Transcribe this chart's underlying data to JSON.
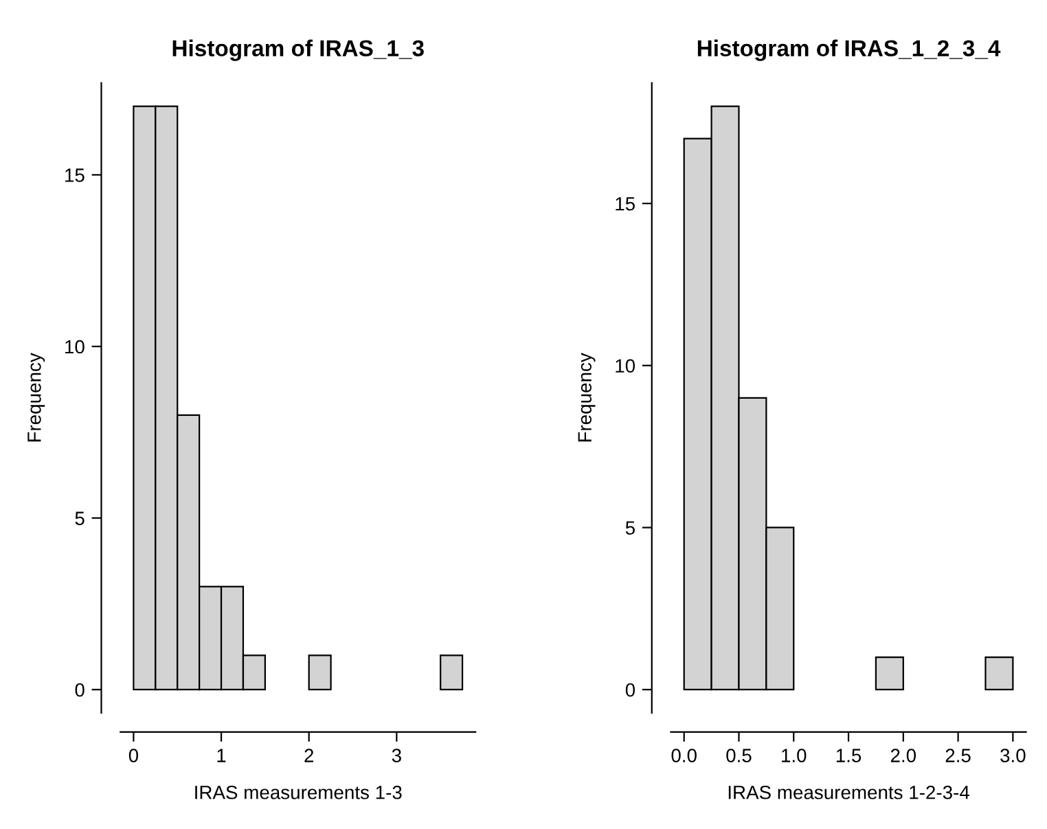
{
  "chart_data": [
    {
      "type": "histogram",
      "title": "Histogram of IRAS_1_3",
      "xlabel": "IRAS measurements 1-3",
      "ylabel": "Frequency",
      "color": "#d3d3d3",
      "bins": [
        0,
        0.25,
        0.5,
        0.75,
        1,
        1.25,
        1.5,
        1.75,
        2,
        2.25,
        2.5,
        2.75,
        3,
        3.25,
        3.5,
        3.75
      ],
      "values": [
        17,
        17,
        8,
        3,
        3,
        1,
        0,
        0,
        1,
        0,
        0,
        0,
        0,
        0,
        1
      ],
      "xlim": [
        -0.15,
        3.9
      ],
      "xticks": [
        0,
        1,
        2,
        3
      ],
      "ylim": [
        -0.68,
        17.68
      ],
      "yticks": [
        0,
        5,
        10,
        15
      ],
      "grid": false,
      "legend": false
    },
    {
      "type": "histogram",
      "title": "Histogram of IRAS_1_2_3_4",
      "xlabel": "IRAS measurements 1-2-3-4",
      "ylabel": "Frequency",
      "color": "#d3d3d3",
      "bins": [
        0,
        0.25,
        0.5,
        0.75,
        1,
        1.25,
        1.5,
        1.75,
        2,
        2.25,
        2.5,
        2.75,
        3
      ],
      "values": [
        17,
        18,
        9,
        5,
        0,
        0,
        0,
        1,
        0,
        0,
        0,
        1
      ],
      "xlim": [
        -0.12,
        3.12
      ],
      "xticks": [
        {
          "value": 0,
          "label": "0.0"
        },
        {
          "value": 0.5,
          "label": "0.5"
        },
        {
          "value": 1,
          "label": "1.0"
        },
        {
          "value": 1.5,
          "label": "1.5"
        },
        {
          "value": 2,
          "label": "2.0"
        },
        {
          "value": 2.5,
          "label": "2.5"
        },
        {
          "value": 3,
          "label": "3.0"
        }
      ],
      "ylim": [
        -0.72,
        18.72
      ],
      "yticks": [
        0,
        5,
        10,
        15
      ],
      "grid": false,
      "legend": false
    }
  ]
}
